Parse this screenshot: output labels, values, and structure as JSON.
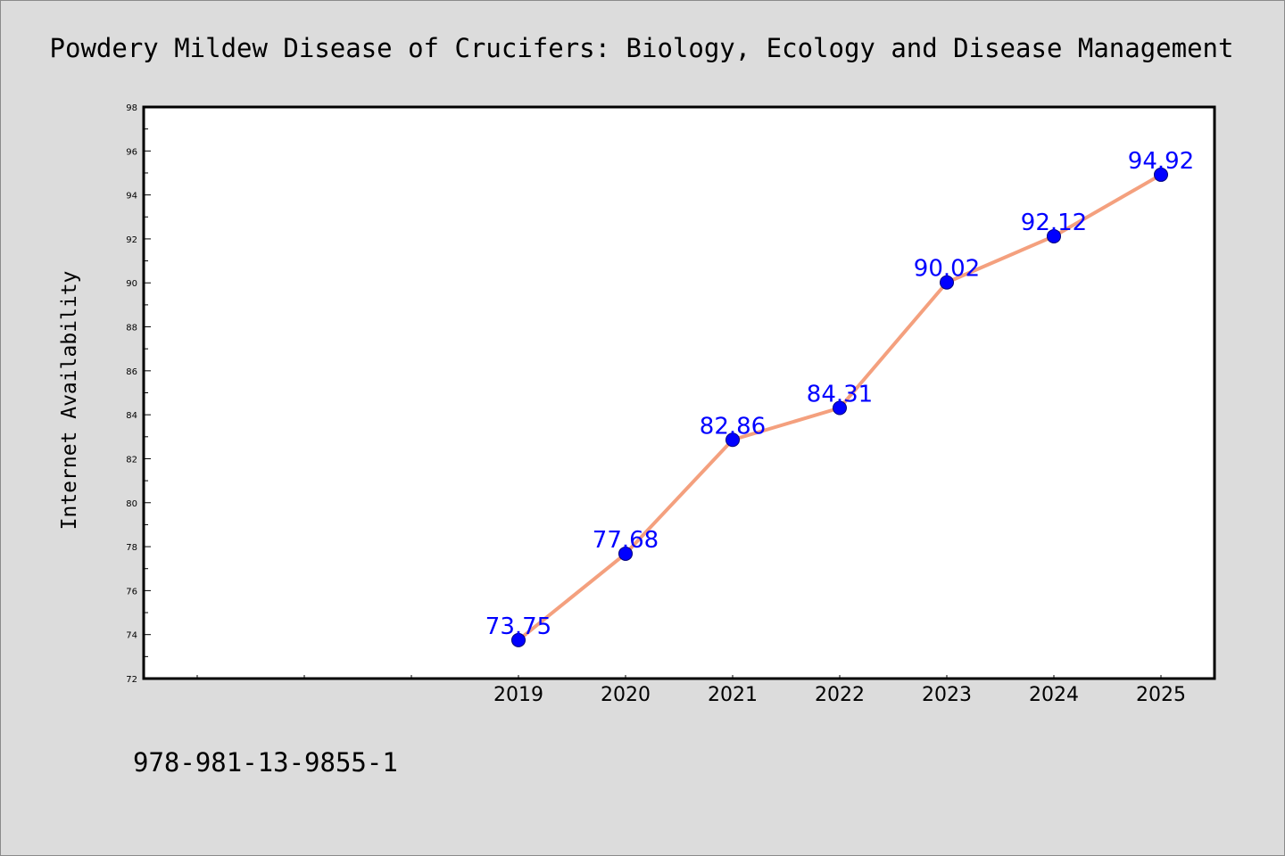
{
  "chart_data": {
    "type": "line",
    "title": "Powdery Mildew Disease of Crucifers: Biology, Ecology and Disease Management",
    "xlabel": "",
    "ylabel": "Internet Availability",
    "x": [
      "2019",
      "2020",
      "2021",
      "2022",
      "2023",
      "2024",
      "2025"
    ],
    "series": [
      {
        "values": [
          73.75,
          77.68,
          82.86,
          84.31,
          90.02,
          92.12,
          94.92
        ],
        "labels": [
          "73.75",
          "77.68",
          "82.86",
          "84.31",
          "90.02",
          "92.12",
          "94.92"
        ]
      }
    ],
    "ylim": [
      72,
      98
    ],
    "yticks": [
      "72",
      "74",
      "76",
      "78",
      "80",
      "82",
      "84",
      "86",
      "88",
      "90",
      "92",
      "94",
      "96",
      "98"
    ],
    "xaxis_empty_slots_before_first": 3,
    "grid": false,
    "legend": "none",
    "colors": {
      "line": "#f4a07e",
      "marker": "#0000ff",
      "data_label": "#0000ff",
      "background": "#dcdcdc",
      "plot_background": "#ffffff"
    }
  },
  "footer": {
    "isbn": "978-981-13-9855-1"
  }
}
